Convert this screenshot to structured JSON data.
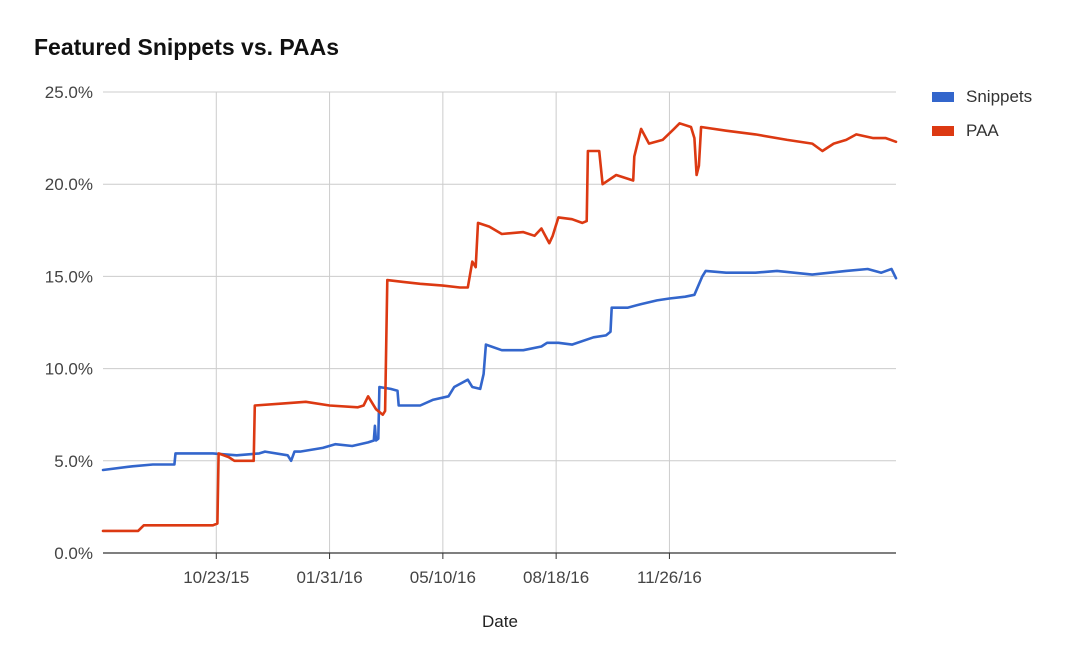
{
  "chart_data": {
    "type": "line",
    "title": "Featured Snippets vs. PAAs",
    "xlabel": "Date",
    "ylabel": "",
    "ylim": [
      0,
      0.25
    ],
    "xlim": [
      "2015-07-15",
      "2017-06-14"
    ],
    "y_ticks": [
      {
        "value": 0.0,
        "label": "0.0%"
      },
      {
        "value": 0.05,
        "label": "5.0%"
      },
      {
        "value": 0.1,
        "label": "10.0%"
      },
      {
        "value": 0.15,
        "label": "15.0%"
      },
      {
        "value": 0.2,
        "label": "20.0%"
      },
      {
        "value": 0.25,
        "label": "25.0%"
      }
    ],
    "x_ticks": [
      {
        "date": "2015-10-23",
        "label": "10/23/15"
      },
      {
        "date": "2016-01-31",
        "label": "01/31/16"
      },
      {
        "date": "2016-05-10",
        "label": "05/10/16"
      },
      {
        "date": "2016-08-18",
        "label": "08/18/16"
      },
      {
        "date": "2016-11-26",
        "label": "11/26/16"
      }
    ],
    "grid": true,
    "legend_position": "right",
    "series": [
      {
        "name": "Snippets",
        "color": "#3366cc",
        "points": [
          [
            "2015-07-15",
            0.045
          ],
          [
            "2015-08-10",
            0.047
          ],
          [
            "2015-08-28",
            0.048
          ],
          [
            "2015-09-16",
            0.048
          ],
          [
            "2015-09-17",
            0.054
          ],
          [
            "2015-10-20",
            0.054
          ],
          [
            "2015-11-10",
            0.053
          ],
          [
            "2015-11-30",
            0.054
          ],
          [
            "2015-12-05",
            0.055
          ],
          [
            "2015-12-25",
            0.053
          ],
          [
            "2015-12-28",
            0.05
          ],
          [
            "2015-12-31",
            0.055
          ],
          [
            "2016-01-05",
            0.055
          ],
          [
            "2016-01-25",
            0.057
          ],
          [
            "2016-02-05",
            0.059
          ],
          [
            "2016-02-20",
            0.058
          ],
          [
            "2016-03-05",
            0.06
          ],
          [
            "2016-03-10",
            0.061
          ],
          [
            "2016-03-11",
            0.069
          ],
          [
            "2016-03-12",
            0.061
          ],
          [
            "2016-03-14",
            0.062
          ],
          [
            "2016-03-15",
            0.09
          ],
          [
            "2016-03-25",
            0.089
          ],
          [
            "2016-03-31",
            0.088
          ],
          [
            "2016-04-01",
            0.08
          ],
          [
            "2016-04-20",
            0.08
          ],
          [
            "2016-05-01",
            0.083
          ],
          [
            "2016-05-15",
            0.085
          ],
          [
            "2016-05-20",
            0.09
          ],
          [
            "2016-06-01",
            0.094
          ],
          [
            "2016-06-05",
            0.09
          ],
          [
            "2016-06-12",
            0.089
          ],
          [
            "2016-06-15",
            0.097
          ],
          [
            "2016-06-17",
            0.113
          ],
          [
            "2016-07-01",
            0.11
          ],
          [
            "2016-07-20",
            0.11
          ],
          [
            "2016-08-05",
            0.112
          ],
          [
            "2016-08-10",
            0.114
          ],
          [
            "2016-08-20",
            0.114
          ],
          [
            "2016-09-01",
            0.113
          ],
          [
            "2016-09-20",
            0.117
          ],
          [
            "2016-10-01",
            0.118
          ],
          [
            "2016-10-05",
            0.12
          ],
          [
            "2016-10-06",
            0.133
          ],
          [
            "2016-10-20",
            0.133
          ],
          [
            "2016-11-01",
            0.135
          ],
          [
            "2016-11-15",
            0.137
          ],
          [
            "2016-11-26",
            0.138
          ],
          [
            "2016-12-10",
            0.139
          ],
          [
            "2016-12-18",
            0.14
          ],
          [
            "2016-12-25",
            0.15
          ],
          [
            "2016-12-28",
            0.153
          ],
          [
            "2017-01-15",
            0.152
          ],
          [
            "2017-02-10",
            0.152
          ],
          [
            "2017-03-01",
            0.153
          ],
          [
            "2017-04-01",
            0.151
          ],
          [
            "2017-05-01",
            0.153
          ],
          [
            "2017-05-20",
            0.154
          ],
          [
            "2017-06-01",
            0.152
          ],
          [
            "2017-06-10",
            0.154
          ],
          [
            "2017-06-14",
            0.149
          ]
        ]
      },
      {
        "name": "PAA",
        "color": "#dc3912",
        "points": [
          [
            "2015-07-15",
            0.012
          ],
          [
            "2015-08-15",
            0.012
          ],
          [
            "2015-08-20",
            0.015
          ],
          [
            "2015-09-20",
            0.015
          ],
          [
            "2015-10-15",
            0.015
          ],
          [
            "2015-10-20",
            0.015
          ],
          [
            "2015-10-24",
            0.016
          ],
          [
            "2015-10-25",
            0.054
          ],
          [
            "2015-11-03",
            0.052
          ],
          [
            "2015-11-08",
            0.05
          ],
          [
            "2015-11-25",
            0.05
          ],
          [
            "2015-11-26",
            0.08
          ],
          [
            "2015-12-20",
            0.081
          ],
          [
            "2016-01-10",
            0.082
          ],
          [
            "2016-01-31",
            0.08
          ],
          [
            "2016-02-25",
            0.079
          ],
          [
            "2016-03-01",
            0.08
          ],
          [
            "2016-03-05",
            0.085
          ],
          [
            "2016-03-12",
            0.078
          ],
          [
            "2016-03-18",
            0.075
          ],
          [
            "2016-03-20",
            0.077
          ],
          [
            "2016-03-22",
            0.148
          ],
          [
            "2016-04-05",
            0.147
          ],
          [
            "2016-04-20",
            0.146
          ],
          [
            "2016-05-10",
            0.145
          ],
          [
            "2016-05-25",
            0.144
          ],
          [
            "2016-06-01",
            0.144
          ],
          [
            "2016-06-05",
            0.158
          ],
          [
            "2016-06-08",
            0.155
          ],
          [
            "2016-06-10",
            0.179
          ],
          [
            "2016-06-20",
            0.177
          ],
          [
            "2016-07-01",
            0.173
          ],
          [
            "2016-07-20",
            0.174
          ],
          [
            "2016-07-30",
            0.172
          ],
          [
            "2016-08-05",
            0.176
          ],
          [
            "2016-08-12",
            0.168
          ],
          [
            "2016-08-15",
            0.172
          ],
          [
            "2016-08-20",
            0.182
          ],
          [
            "2016-09-01",
            0.181
          ],
          [
            "2016-09-10",
            0.179
          ],
          [
            "2016-09-14",
            0.18
          ],
          [
            "2016-09-15",
            0.218
          ],
          [
            "2016-09-25",
            0.218
          ],
          [
            "2016-09-28",
            0.2
          ],
          [
            "2016-10-10",
            0.205
          ],
          [
            "2016-10-25",
            0.202
          ],
          [
            "2016-10-26",
            0.215
          ],
          [
            "2016-11-01",
            0.23
          ],
          [
            "2016-11-08",
            0.222
          ],
          [
            "2016-11-20",
            0.224
          ],
          [
            "2016-11-30",
            0.23
          ],
          [
            "2016-12-05",
            0.233
          ],
          [
            "2016-12-15",
            0.231
          ],
          [
            "2016-12-18",
            0.225
          ],
          [
            "2016-12-20",
            0.205
          ],
          [
            "2016-12-22",
            0.21
          ],
          [
            "2016-12-24",
            0.231
          ],
          [
            "2017-01-15",
            0.229
          ],
          [
            "2017-02-10",
            0.227
          ],
          [
            "2017-03-10",
            0.224
          ],
          [
            "2017-04-01",
            0.222
          ],
          [
            "2017-04-10",
            0.218
          ],
          [
            "2017-04-20",
            0.222
          ],
          [
            "2017-05-01",
            0.224
          ],
          [
            "2017-05-10",
            0.227
          ],
          [
            "2017-05-25",
            0.225
          ],
          [
            "2017-06-05",
            0.225
          ],
          [
            "2017-06-14",
            0.223
          ]
        ]
      }
    ]
  }
}
